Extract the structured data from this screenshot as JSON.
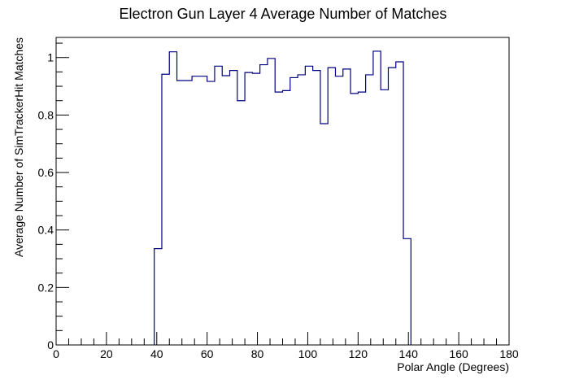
{
  "chart_data": {
    "type": "bar",
    "histogram": true,
    "title": "Electron Gun Layer 4 Average Number of Matches",
    "xlabel": "Polar Angle (Degrees)",
    "ylabel": "Average Number of SimTrackerHit Matches",
    "xlim": [
      0,
      180
    ],
    "ylim": [
      0,
      1.07
    ],
    "x_ticks": [
      0,
      20,
      40,
      60,
      80,
      100,
      120,
      140,
      160,
      180
    ],
    "y_ticks": [
      0,
      0.2,
      0.4,
      0.6,
      0.8,
      1
    ],
    "y_tick_labels": [
      "0",
      "0.2",
      "0.4",
      "0.6",
      "0.8",
      "1"
    ],
    "bin_width": 3,
    "series": [
      {
        "color": "#000080",
        "bins": [
          {
            "x0": 39,
            "value": 0.335
          },
          {
            "x0": 42,
            "value": 0.942
          },
          {
            "x0": 45,
            "value": 1.02
          },
          {
            "x0": 48,
            "value": 0.92
          },
          {
            "x0": 51,
            "value": 0.92
          },
          {
            "x0": 54,
            "value": 0.935
          },
          {
            "x0": 57,
            "value": 0.935
          },
          {
            "x0": 60,
            "value": 0.917
          },
          {
            "x0": 63,
            "value": 0.97
          },
          {
            "x0": 66,
            "value": 0.937
          },
          {
            "x0": 69,
            "value": 0.955
          },
          {
            "x0": 72,
            "value": 0.85
          },
          {
            "x0": 75,
            "value": 0.948
          },
          {
            "x0": 78,
            "value": 0.945
          },
          {
            "x0": 81,
            "value": 0.975
          },
          {
            "x0": 84,
            "value": 0.997
          },
          {
            "x0": 87,
            "value": 0.88
          },
          {
            "x0": 90,
            "value": 0.885
          },
          {
            "x0": 93,
            "value": 0.93
          },
          {
            "x0": 96,
            "value": 0.94
          },
          {
            "x0": 99,
            "value": 0.97
          },
          {
            "x0": 102,
            "value": 0.955
          },
          {
            "x0": 105,
            "value": 0.77
          },
          {
            "x0": 108,
            "value": 0.965
          },
          {
            "x0": 111,
            "value": 0.935
          },
          {
            "x0": 114,
            "value": 0.96
          },
          {
            "x0": 117,
            "value": 0.875
          },
          {
            "x0": 120,
            "value": 0.88
          },
          {
            "x0": 123,
            "value": 0.94
          },
          {
            "x0": 126,
            "value": 1.022
          },
          {
            "x0": 129,
            "value": 0.888
          },
          {
            "x0": 132,
            "value": 0.965
          },
          {
            "x0": 135,
            "value": 0.985
          },
          {
            "x0": 138,
            "value": 0.37
          }
        ]
      }
    ]
  }
}
